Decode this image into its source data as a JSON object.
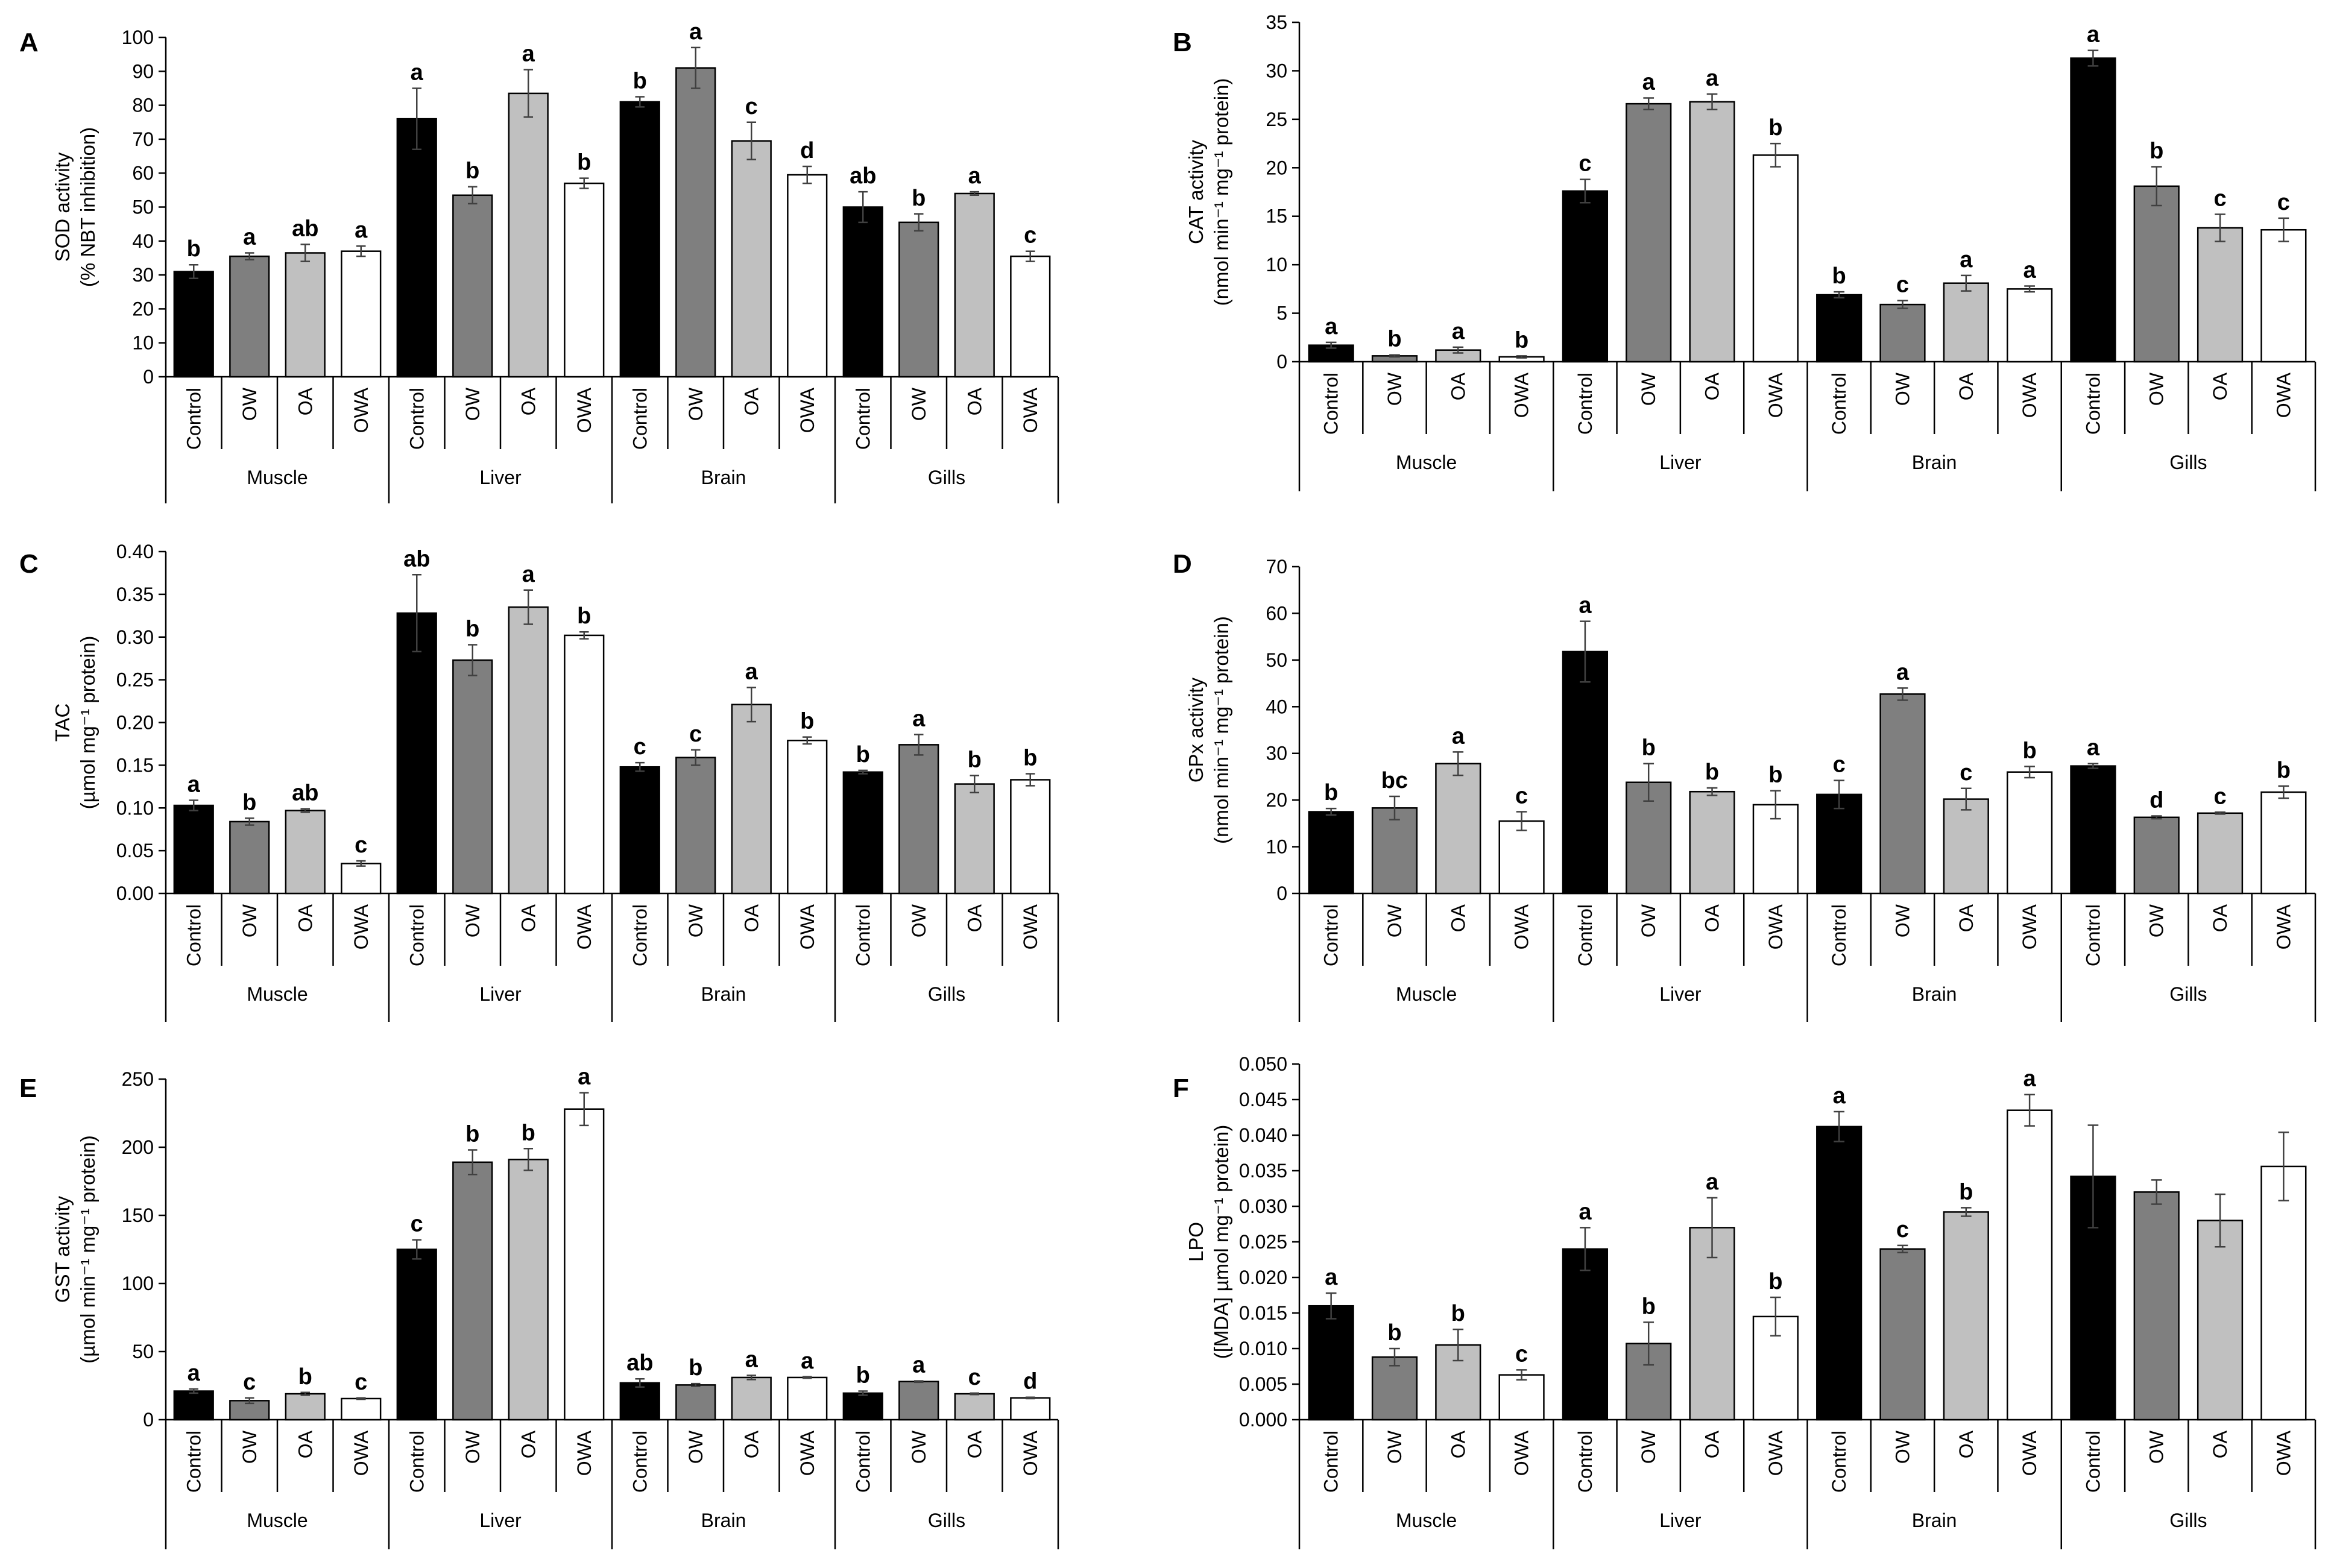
{
  "figure": {
    "treatments": [
      "Control",
      "OW",
      "OA",
      "OWA"
    ],
    "tissues": [
      "Muscle",
      "Liver",
      "Brain",
      "Gills"
    ],
    "treatment_colors": [
      "#000000",
      "#7f7f7f",
      "#c0c0c0",
      "#ffffff"
    ],
    "bar_edge_color": "#000000",
    "error_bar_color": "#404040"
  },
  "chart_data": [
    {
      "panel": "A",
      "type": "bar",
      "ylabel": [
        "SOD activity",
        "(% NBT inhibition)"
      ],
      "ylim": [
        0,
        100
      ],
      "yticks": [
        "0",
        "10",
        "20",
        "30",
        "40",
        "50",
        "60",
        "70",
        "80",
        "90",
        "100"
      ],
      "groups": [
        {
          "tissue": "Muscle",
          "bars": [
            {
              "treatment": "Control",
              "value": 31,
              "err": 2,
              "letter": "b"
            },
            {
              "treatment": "OW",
              "value": 35.5,
              "err": 1,
              "letter": "a"
            },
            {
              "treatment": "OA",
              "value": 36.5,
              "err": 2.5,
              "letter": "ab"
            },
            {
              "treatment": "OWA",
              "value": 37,
              "err": 1.5,
              "letter": "a"
            }
          ]
        },
        {
          "tissue": "Liver",
          "bars": [
            {
              "treatment": "Control",
              "value": 76,
              "err": 9,
              "letter": "a"
            },
            {
              "treatment": "OW",
              "value": 53.5,
              "err": 2.5,
              "letter": "b"
            },
            {
              "treatment": "OA",
              "value": 83.5,
              "err": 7,
              "letter": "a"
            },
            {
              "treatment": "OWA",
              "value": 57,
              "err": 1.5,
              "letter": "b"
            }
          ]
        },
        {
          "tissue": "Brain",
          "bars": [
            {
              "treatment": "Control",
              "value": 81,
              "err": 1.5,
              "letter": "b"
            },
            {
              "treatment": "OW",
              "value": 91,
              "err": 6,
              "letter": "a"
            },
            {
              "treatment": "OA",
              "value": 69.5,
              "err": 5.5,
              "letter": "c"
            },
            {
              "treatment": "OWA",
              "value": 59.5,
              "err": 2.5,
              "letter": "d"
            }
          ]
        },
        {
          "tissue": "Gills",
          "bars": [
            {
              "treatment": "Control",
              "value": 50,
              "err": 4.5,
              "letter": "ab"
            },
            {
              "treatment": "OW",
              "value": 45.5,
              "err": 2.5,
              "letter": "b"
            },
            {
              "treatment": "OA",
              "value": 54,
              "err": 0.5,
              "letter": "a"
            },
            {
              "treatment": "OWA",
              "value": 35.5,
              "err": 1.5,
              "letter": "c"
            }
          ]
        }
      ]
    },
    {
      "panel": "B",
      "type": "bar",
      "ylabel": [
        "CAT activity",
        "(nmol min⁻¹ mg⁻¹ protein)"
      ],
      "ylim": [
        0,
        35
      ],
      "yticks": [
        "0",
        "5",
        "10",
        "15",
        "20",
        "25",
        "30",
        "35"
      ],
      "groups": [
        {
          "tissue": "Muscle",
          "bars": [
            {
              "treatment": "Control",
              "value": 1.7,
              "err": 0.3,
              "letter": "a"
            },
            {
              "treatment": "OW",
              "value": 0.6,
              "err": 0.1,
              "letter": "b"
            },
            {
              "treatment": "OA",
              "value": 1.2,
              "err": 0.3,
              "letter": "a"
            },
            {
              "treatment": "OWA",
              "value": 0.5,
              "err": 0.1,
              "letter": "b"
            }
          ]
        },
        {
          "tissue": "Liver",
          "bars": [
            {
              "treatment": "Control",
              "value": 17.6,
              "err": 1.2,
              "letter": "c"
            },
            {
              "treatment": "OW",
              "value": 26.6,
              "err": 0.6,
              "letter": "a"
            },
            {
              "treatment": "OA",
              "value": 26.8,
              "err": 0.8,
              "letter": "a"
            },
            {
              "treatment": "OWA",
              "value": 21.3,
              "err": 1.2,
              "letter": "b"
            }
          ]
        },
        {
          "tissue": "Brain",
          "bars": [
            {
              "treatment": "Control",
              "value": 6.9,
              "err": 0.3,
              "letter": "b"
            },
            {
              "treatment": "OW",
              "value": 5.9,
              "err": 0.4,
              "letter": "c"
            },
            {
              "treatment": "OA",
              "value": 8.1,
              "err": 0.8,
              "letter": "a"
            },
            {
              "treatment": "OWA",
              "value": 7.5,
              "err": 0.3,
              "letter": "a"
            }
          ]
        },
        {
          "tissue": "Gills",
          "bars": [
            {
              "treatment": "Control",
              "value": 31.3,
              "err": 0.8,
              "letter": "a"
            },
            {
              "treatment": "OW",
              "value": 18.1,
              "err": 2.0,
              "letter": "b"
            },
            {
              "treatment": "OA",
              "value": 13.8,
              "err": 1.4,
              "letter": "c"
            },
            {
              "treatment": "OWA",
              "value": 13.6,
              "err": 1.2,
              "letter": "c"
            }
          ]
        }
      ]
    },
    {
      "panel": "C",
      "type": "bar",
      "ylabel": [
        "TAC",
        "(µmol mg⁻¹ protein)"
      ],
      "ylim": [
        0,
        0.4
      ],
      "yticks": [
        "0.00",
        "0.05",
        "0.10",
        "0.15",
        "0.20",
        "0.25",
        "0.30",
        "0.35",
        "0.40"
      ],
      "groups": [
        {
          "tissue": "Muscle",
          "bars": [
            {
              "treatment": "Control",
              "value": 0.103,
              "err": 0.006,
              "letter": "a"
            },
            {
              "treatment": "OW",
              "value": 0.084,
              "err": 0.004,
              "letter": "b"
            },
            {
              "treatment": "OA",
              "value": 0.097,
              "err": 0.002,
              "letter": "ab"
            },
            {
              "treatment": "OWA",
              "value": 0.035,
              "err": 0.003,
              "letter": "c"
            }
          ]
        },
        {
          "tissue": "Liver",
          "bars": [
            {
              "treatment": "Control",
              "value": 0.328,
              "err": 0.045,
              "letter": "ab"
            },
            {
              "treatment": "OW",
              "value": 0.273,
              "err": 0.018,
              "letter": "b"
            },
            {
              "treatment": "OA",
              "value": 0.335,
              "err": 0.02,
              "letter": "a"
            },
            {
              "treatment": "OWA",
              "value": 0.302,
              "err": 0.004,
              "letter": "b"
            }
          ]
        },
        {
          "tissue": "Brain",
          "bars": [
            {
              "treatment": "Control",
              "value": 0.148,
              "err": 0.005,
              "letter": "c"
            },
            {
              "treatment": "OW",
              "value": 0.159,
              "err": 0.009,
              "letter": "c"
            },
            {
              "treatment": "OA",
              "value": 0.221,
              "err": 0.02,
              "letter": "a"
            },
            {
              "treatment": "OWA",
              "value": 0.179,
              "err": 0.004,
              "letter": "b"
            }
          ]
        },
        {
          "tissue": "Gills",
          "bars": [
            {
              "treatment": "Control",
              "value": 0.142,
              "err": 0.002,
              "letter": "b"
            },
            {
              "treatment": "OW",
              "value": 0.174,
              "err": 0.012,
              "letter": "a"
            },
            {
              "treatment": "OA",
              "value": 0.128,
              "err": 0.01,
              "letter": "b"
            },
            {
              "treatment": "OWA",
              "value": 0.133,
              "err": 0.007,
              "letter": "b"
            }
          ]
        }
      ]
    },
    {
      "panel": "D",
      "type": "bar",
      "ylabel": [
        "GPx activity",
        "(nmol min⁻¹ mg⁻¹ protein)"
      ],
      "ylim": [
        0,
        70
      ],
      "yticks": [
        "0",
        "10",
        "20",
        "30",
        "40",
        "50",
        "60",
        "70"
      ],
      "groups": [
        {
          "tissue": "Muscle",
          "bars": [
            {
              "treatment": "Control",
              "value": 17.5,
              "err": 0.7,
              "letter": "b"
            },
            {
              "treatment": "OW",
              "value": 18.3,
              "err": 2.5,
              "letter": "bc"
            },
            {
              "treatment": "OA",
              "value": 27.8,
              "err": 2.5,
              "letter": "a"
            },
            {
              "treatment": "OWA",
              "value": 15.5,
              "err": 2.0,
              "letter": "c"
            }
          ]
        },
        {
          "tissue": "Liver",
          "bars": [
            {
              "treatment": "Control",
              "value": 51.8,
              "err": 6.5,
              "letter": "a"
            },
            {
              "treatment": "OW",
              "value": 23.8,
              "err": 4.0,
              "letter": "b"
            },
            {
              "treatment": "OA",
              "value": 21.8,
              "err": 0.8,
              "letter": "b"
            },
            {
              "treatment": "OWA",
              "value": 19.0,
              "err": 3.0,
              "letter": "b"
            }
          ]
        },
        {
          "tissue": "Brain",
          "bars": [
            {
              "treatment": "Control",
              "value": 21.2,
              "err": 3.0,
              "letter": "c"
            },
            {
              "treatment": "OW",
              "value": 42.7,
              "err": 1.3,
              "letter": "a"
            },
            {
              "treatment": "OA",
              "value": 20.2,
              "err": 2.3,
              "letter": "c"
            },
            {
              "treatment": "OWA",
              "value": 26.0,
              "err": 1.2,
              "letter": "b"
            }
          ]
        },
        {
          "tissue": "Gills",
          "bars": [
            {
              "treatment": "Control",
              "value": 27.3,
              "err": 0.5,
              "letter": "a"
            },
            {
              "treatment": "OW",
              "value": 16.3,
              "err": 0.3,
              "letter": "d"
            },
            {
              "treatment": "OA",
              "value": 17.2,
              "err": 0.2,
              "letter": "c"
            },
            {
              "treatment": "OWA",
              "value": 21.7,
              "err": 1.3,
              "letter": "b"
            }
          ]
        }
      ]
    },
    {
      "panel": "E",
      "type": "bar",
      "ylabel": [
        "GST activity",
        "(µmol min⁻¹ mg⁻¹ protein)"
      ],
      "ylim": [
        0,
        250
      ],
      "yticks": [
        "0",
        "50",
        "100",
        "150",
        "200",
        "250"
      ],
      "groups": [
        {
          "tissue": "Muscle",
          "bars": [
            {
              "treatment": "Control",
              "value": 21,
              "err": 1.5,
              "letter": "a"
            },
            {
              "treatment": "OW",
              "value": 14,
              "err": 2,
              "letter": "c"
            },
            {
              "treatment": "OA",
              "value": 19,
              "err": 1,
              "letter": "b"
            },
            {
              "treatment": "OWA",
              "value": 15.5,
              "err": 0.5,
              "letter": "c"
            }
          ]
        },
        {
          "tissue": "Liver",
          "bars": [
            {
              "treatment": "Control",
              "value": 125,
              "err": 7,
              "letter": "c"
            },
            {
              "treatment": "OW",
              "value": 189,
              "err": 9,
              "letter": "b"
            },
            {
              "treatment": "OA",
              "value": 191,
              "err": 8,
              "letter": "b"
            },
            {
              "treatment": "OWA",
              "value": 228,
              "err": 12,
              "letter": "a"
            }
          ]
        },
        {
          "tissue": "Brain",
          "bars": [
            {
              "treatment": "Control",
              "value": 27,
              "err": 3,
              "letter": "ab"
            },
            {
              "treatment": "OW",
              "value": 25.5,
              "err": 1,
              "letter": "b"
            },
            {
              "treatment": "OA",
              "value": 31,
              "err": 1.5,
              "letter": "a"
            },
            {
              "treatment": "OWA",
              "value": 31,
              "err": 0.5,
              "letter": "a"
            }
          ]
        },
        {
          "tissue": "Gills",
          "bars": [
            {
              "treatment": "Control",
              "value": 19.5,
              "err": 1.5,
              "letter": "b"
            },
            {
              "treatment": "OW",
              "value": 28,
              "err": 0.5,
              "letter": "a"
            },
            {
              "treatment": "OA",
              "value": 19,
              "err": 0.5,
              "letter": "c"
            },
            {
              "treatment": "OWA",
              "value": 16,
              "err": 0.5,
              "letter": "d"
            }
          ]
        }
      ]
    },
    {
      "panel": "F",
      "type": "bar",
      "ylabel": [
        "LPO",
        "([MDA] µmol mg⁻¹ protein)"
      ],
      "ylim": [
        0,
        0.05
      ],
      "yticks": [
        "0.000",
        "0.005",
        "0.010",
        "0.015",
        "0.020",
        "0.025",
        "0.030",
        "0.035",
        "0.040",
        "0.045",
        "0.050"
      ],
      "groups": [
        {
          "tissue": "Muscle",
          "bars": [
            {
              "treatment": "Control",
              "value": 0.016,
              "err": 0.0018,
              "letter": "a"
            },
            {
              "treatment": "OW",
              "value": 0.0088,
              "err": 0.0012,
              "letter": "b"
            },
            {
              "treatment": "OA",
              "value": 0.0105,
              "err": 0.0022,
              "letter": "b"
            },
            {
              "treatment": "OWA",
              "value": 0.0063,
              "err": 0.0007,
              "letter": "c"
            }
          ]
        },
        {
          "tissue": "Liver",
          "bars": [
            {
              "treatment": "Control",
              "value": 0.024,
              "err": 0.003,
              "letter": "a"
            },
            {
              "treatment": "OW",
              "value": 0.0107,
              "err": 0.003,
              "letter": "b"
            },
            {
              "treatment": "OA",
              "value": 0.027,
              "err": 0.0042,
              "letter": "a"
            },
            {
              "treatment": "OWA",
              "value": 0.0145,
              "err": 0.0027,
              "letter": "b"
            }
          ]
        },
        {
          "tissue": "Brain",
          "bars": [
            {
              "treatment": "Control",
              "value": 0.0412,
              "err": 0.0021,
              "letter": "a"
            },
            {
              "treatment": "OW",
              "value": 0.024,
              "err": 0.0005,
              "letter": "c"
            },
            {
              "treatment": "OA",
              "value": 0.0292,
              "err": 0.0006,
              "letter": "b"
            },
            {
              "treatment": "OWA",
              "value": 0.0435,
              "err": 0.0022,
              "letter": "a"
            }
          ]
        },
        {
          "tissue": "Gills",
          "bars": [
            {
              "treatment": "Control",
              "value": 0.0342,
              "err": 0.0072,
              "letter": ""
            },
            {
              "treatment": "OW",
              "value": 0.032,
              "err": 0.0017,
              "letter": ""
            },
            {
              "treatment": "OA",
              "value": 0.028,
              "err": 0.0037,
              "letter": ""
            },
            {
              "treatment": "OWA",
              "value": 0.0356,
              "err": 0.0048,
              "letter": ""
            }
          ]
        }
      ]
    }
  ]
}
